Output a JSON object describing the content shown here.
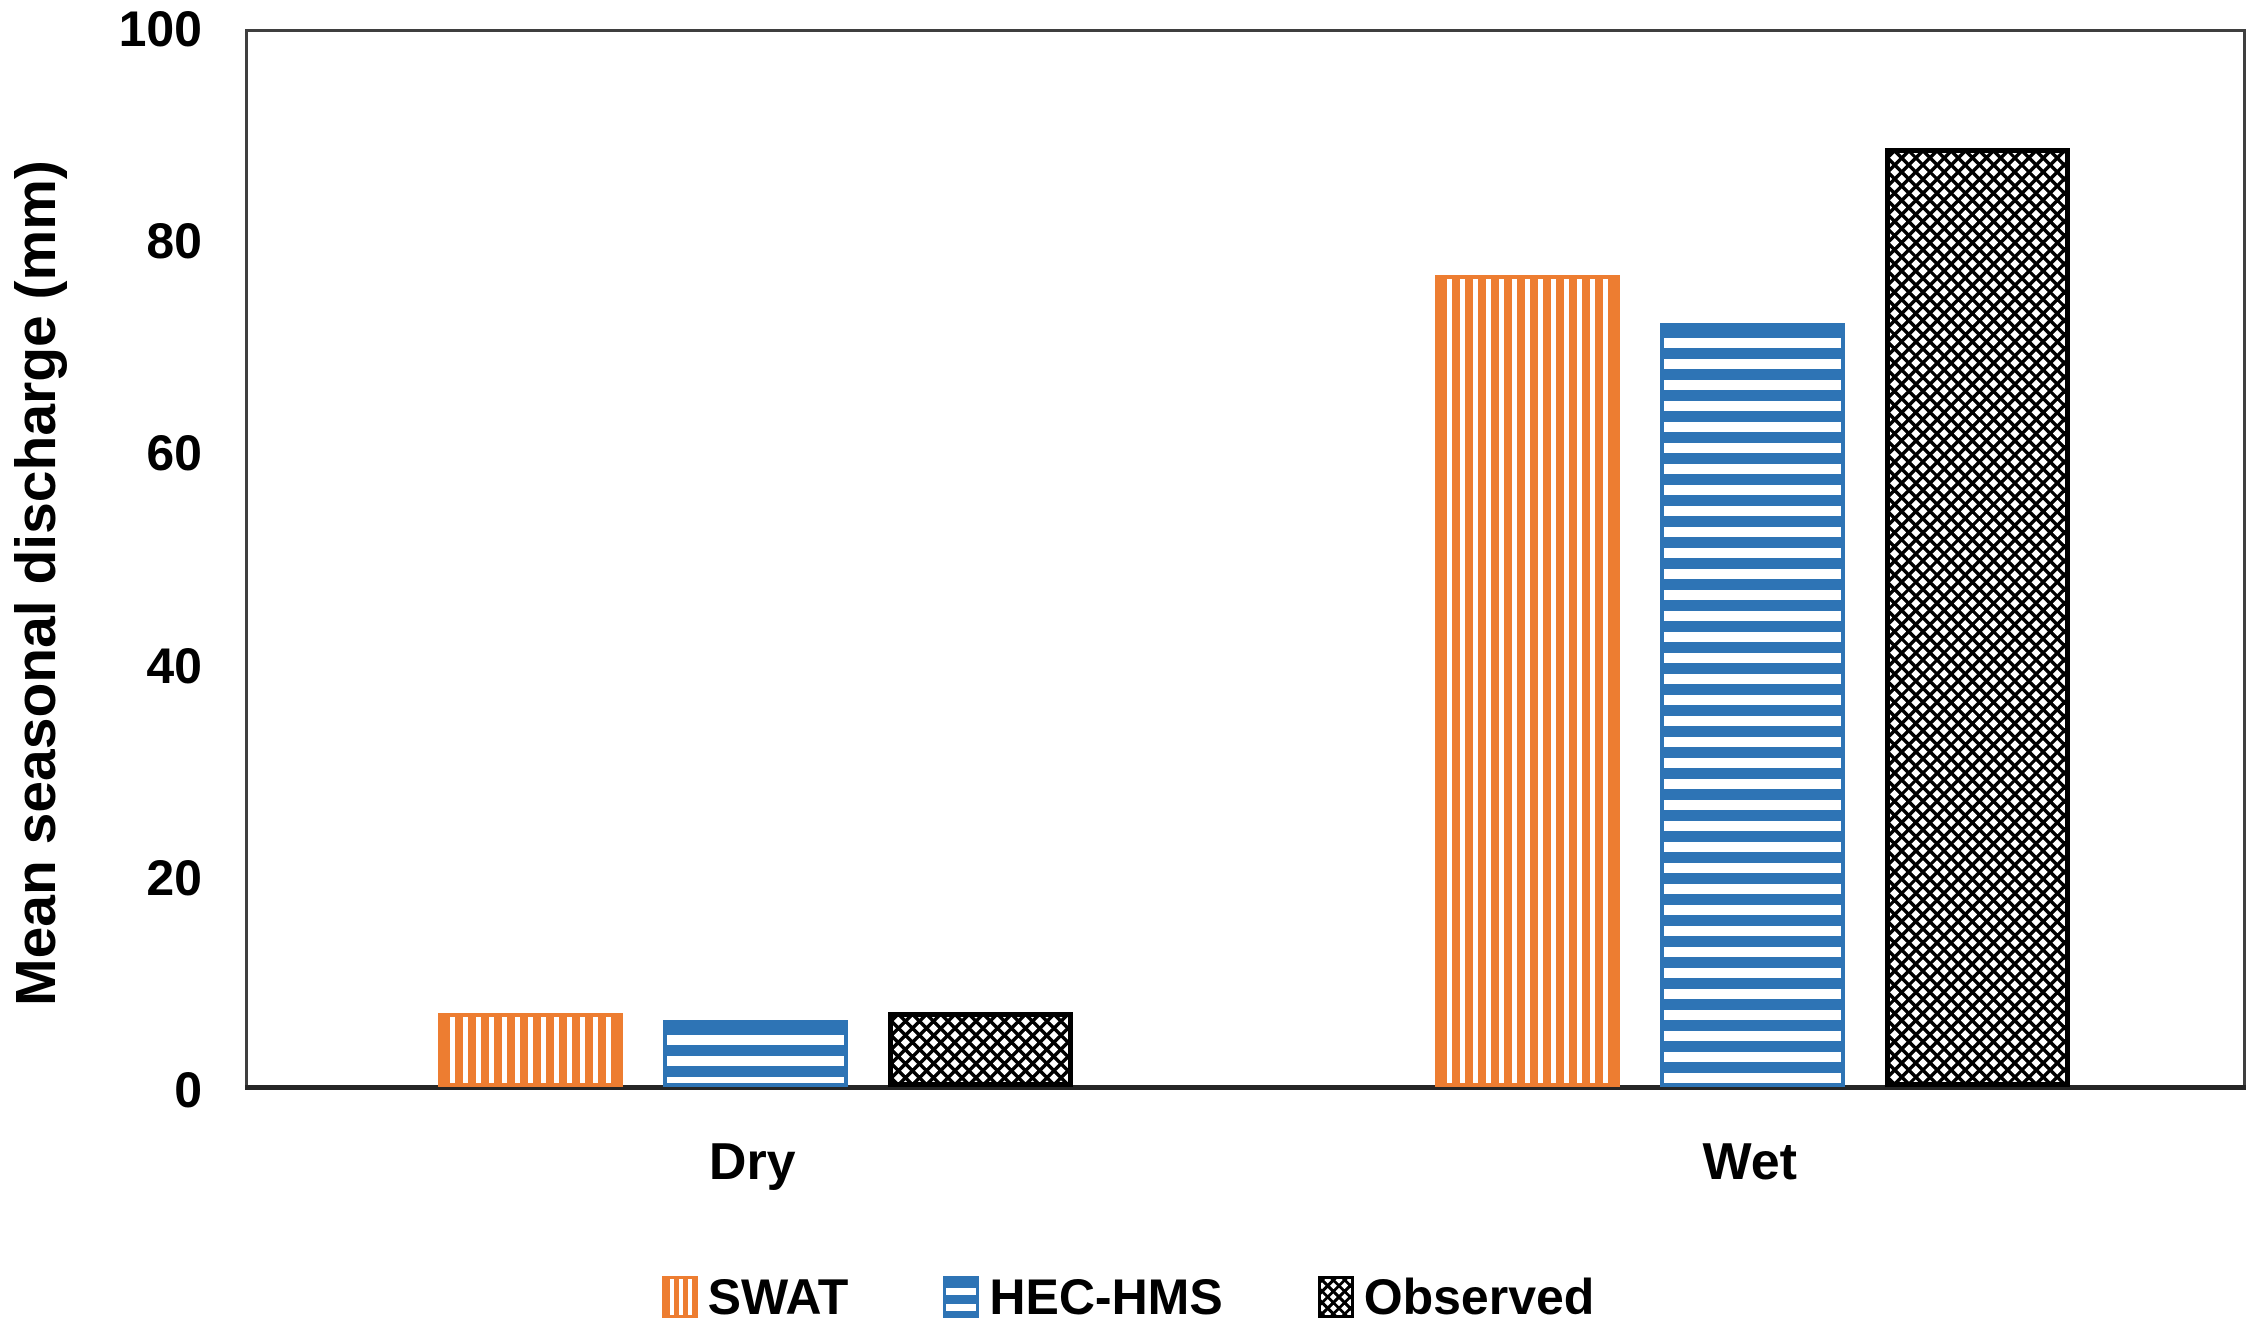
{
  "chart_data": {
    "type": "bar",
    "title": "",
    "categories": [
      "Dry",
      "Wet"
    ],
    "series": [
      {
        "name": "SWAT",
        "pattern": "vertical-stripes",
        "color": "#ED7D31",
        "values": [
          7.0,
          76.5
        ]
      },
      {
        "name": "HEC-HMS",
        "pattern": "horizontal-stripes",
        "color": "#2E74B5",
        "values": [
          6.3,
          72.0
        ]
      },
      {
        "name": "Observed",
        "pattern": "crosshatch",
        "color": "#000000",
        "values": [
          7.1,
          88.5
        ]
      }
    ],
    "xlabel": "",
    "ylabel": "Mean seasonal discharge (mm)",
    "ylim": [
      0,
      100
    ],
    "yticks": [
      0,
      20,
      40,
      60,
      80,
      100
    ],
    "grid": false,
    "legend_position": "bottom-center"
  },
  "styles": {
    "frame_color": "#3F3F3F",
    "axis_line_color": "#262626",
    "text_color": "#000000",
    "background": "#FFFFFF"
  }
}
